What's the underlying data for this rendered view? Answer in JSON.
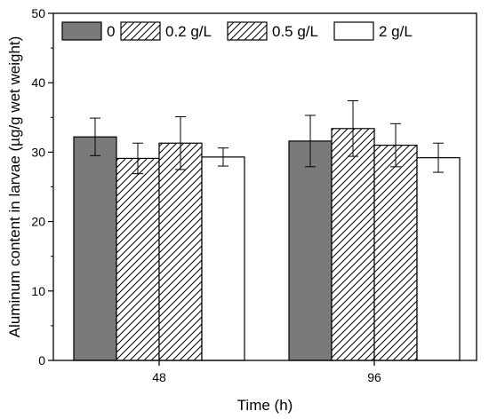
{
  "chart_data": {
    "type": "bar",
    "title": "",
    "xlabel": "Time (h)",
    "ylabel": "Aluminum content in larvae (µg/g wet weight)",
    "ylim": [
      0,
      50
    ],
    "yticks": [
      0,
      10,
      20,
      30,
      40,
      50
    ],
    "categories": [
      "48",
      "96"
    ],
    "legend_position": "top",
    "grid": false,
    "series": [
      {
        "name": "0",
        "values": [
          32.2,
          31.6
        ],
        "errors": [
          2.7,
          3.7
        ],
        "fill": "#7a7a7a",
        "pattern": "solid"
      },
      {
        "name": "0.2 g/L",
        "values": [
          29.1,
          33.4
        ],
        "errors": [
          2.2,
          4.0
        ],
        "fill": "#ffffff",
        "pattern": "diagonal"
      },
      {
        "name": "0.5 g/L",
        "values": [
          31.3,
          31.0
        ],
        "errors": [
          3.8,
          3.1
        ],
        "fill": "#ffffff",
        "pattern": "diagonal"
      },
      {
        "name": "2 g/L",
        "values": [
          29.3,
          29.2
        ],
        "errors": [
          1.3,
          2.1
        ],
        "fill": "#ffffff",
        "pattern": "solid"
      }
    ]
  }
}
